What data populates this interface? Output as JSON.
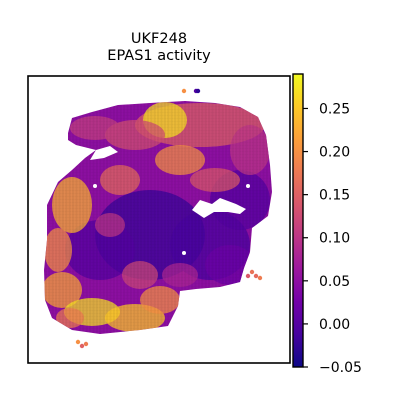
{
  "chart_data": {
    "type": "heatmap",
    "title_lines": [
      "UKF248",
      "EPAS1 activity"
    ],
    "xlabel": "",
    "ylabel": "",
    "colormap": "plasma",
    "colormap_stops": [
      "#0d0887",
      "#46039f",
      "#7201a8",
      "#9c179e",
      "#bd3786",
      "#d8576b",
      "#ed7953",
      "#fb9f3a",
      "#fdca26",
      "#f0f921"
    ],
    "value_range": [
      -0.05,
      0.29
    ],
    "colorbar_ticks": [
      {
        "value": 0.25,
        "label": "0.25"
      },
      {
        "value": 0.2,
        "label": "0.20"
      },
      {
        "value": 0.15,
        "label": "0.15"
      },
      {
        "value": 0.1,
        "label": "0.10"
      },
      {
        "value": 0.05,
        "label": "0.05"
      },
      {
        "value": 0.0,
        "label": "0.00"
      },
      {
        "value": -0.05,
        "label": "−0.05"
      }
    ],
    "axes_ticks": false,
    "grid": false,
    "spot_layout": "hexagonal tissue spots; values estimated",
    "regions": [
      {
        "name": "upper-right band",
        "level": 0.14
      },
      {
        "name": "top hot cluster",
        "level": 0.26
      },
      {
        "name": "left edge",
        "level": 0.22
      },
      {
        "name": "bottom-left hot region",
        "level": 0.27
      },
      {
        "name": "center",
        "level": 0.03
      },
      {
        "name": "right lower lobe",
        "level": 0.02
      }
    ]
  }
}
